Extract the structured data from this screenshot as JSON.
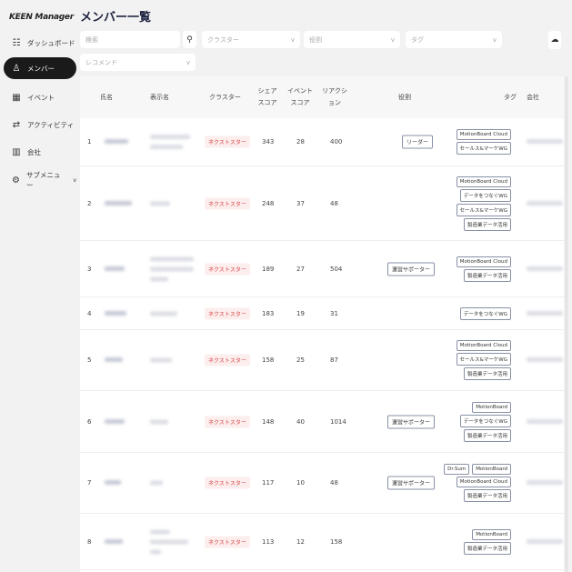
{
  "app": {
    "logo": "KEEN Manager"
  },
  "sidebar": {
    "items": [
      {
        "label": "ダッシュボード",
        "icon": "grid-icon",
        "active": false
      },
      {
        "label": "メンバー",
        "icon": "person-icon",
        "active": true
      },
      {
        "label": "イベント",
        "icon": "calendar-icon",
        "active": false
      },
      {
        "label": "アクティビティ",
        "icon": "activity-icon",
        "active": false
      },
      {
        "label": "会社",
        "icon": "building-icon",
        "active": false
      },
      {
        "label": "サブメニュー",
        "icon": "gear-icon",
        "active": false,
        "chevron": "v"
      }
    ]
  },
  "page": {
    "title": "メンバー一覧"
  },
  "filters": {
    "search_placeholder": "検索",
    "cluster_placeholder": "クラスター",
    "role_placeholder": "役割",
    "tag_placeholder": "タグ",
    "recommend_placeholder": "レコメンド",
    "chevron": "v"
  },
  "table": {
    "headers": {
      "name": "氏名",
      "display_name": "表示名",
      "cluster": "クラスター",
      "share_score": "シェア\nスコア",
      "event_score": "イベント\nスコア",
      "reaction": "リアクシ\nョン",
      "role": "役割",
      "tag": "タグ",
      "company": "会社"
    },
    "rows": [
      {
        "no": "1",
        "cluster": "ネクストスター",
        "share": "343",
        "event": "28",
        "reaction": "400",
        "role": "リーダー",
        "tags": [
          [
            "MotionBoard Cloud"
          ],
          [
            "セールス&マーケWG"
          ]
        ]
      },
      {
        "no": "2",
        "cluster": "ネクストスター",
        "share": "248",
        "event": "37",
        "reaction": "48",
        "role": "",
        "tags": [
          [
            "MotionBoard Cloud"
          ],
          [
            "データをつなぐWG"
          ],
          [
            "セールス&マーケWG"
          ],
          [
            "製造業データ活用"
          ]
        ]
      },
      {
        "no": "3",
        "cluster": "ネクストスター",
        "share": "189",
        "event": "27",
        "reaction": "504",
        "role": "運営サポーター",
        "tags": [
          [
            "MotionBoard Cloud"
          ],
          [
            "製造業データ活用"
          ]
        ]
      },
      {
        "no": "4",
        "cluster": "ネクストスター",
        "share": "183",
        "event": "19",
        "reaction": "31",
        "role": "",
        "tags": [
          [
            "データをつなぐWG"
          ]
        ]
      },
      {
        "no": "5",
        "cluster": "ネクストスター",
        "share": "158",
        "event": "25",
        "reaction": "87",
        "role": "",
        "tags": [
          [
            "MotionBoard Cloud"
          ],
          [
            "セールス&マーケWG"
          ],
          [
            "製造業データ活用"
          ]
        ]
      },
      {
        "no": "6",
        "cluster": "ネクストスター",
        "share": "148",
        "event": "40",
        "reaction": "1014",
        "role": "運営サポーター",
        "tags": [
          [
            "MotionBoard"
          ],
          [
            "データをつなぐWG"
          ],
          [
            "製造業データ活用"
          ]
        ]
      },
      {
        "no": "7",
        "cluster": "ネクストスター",
        "share": "117",
        "event": "10",
        "reaction": "48",
        "role": "運営サポーター",
        "tags": [
          [
            "Dr.Sum",
            "MotionBoard"
          ],
          [
            "MotionBoard Cloud"
          ],
          [
            "製造業データ活用"
          ]
        ]
      },
      {
        "no": "8",
        "cluster": "ネクストスター",
        "share": "113",
        "event": "12",
        "reaction": "158",
        "role": "",
        "tags": [
          [
            "MotionBoard"
          ],
          [
            "製造業データ活用"
          ]
        ]
      }
    ]
  },
  "colors": {
    "accent": "#1a1a1a",
    "cluster_text": "#d64545",
    "cluster_bg": "#fdeeee"
  }
}
